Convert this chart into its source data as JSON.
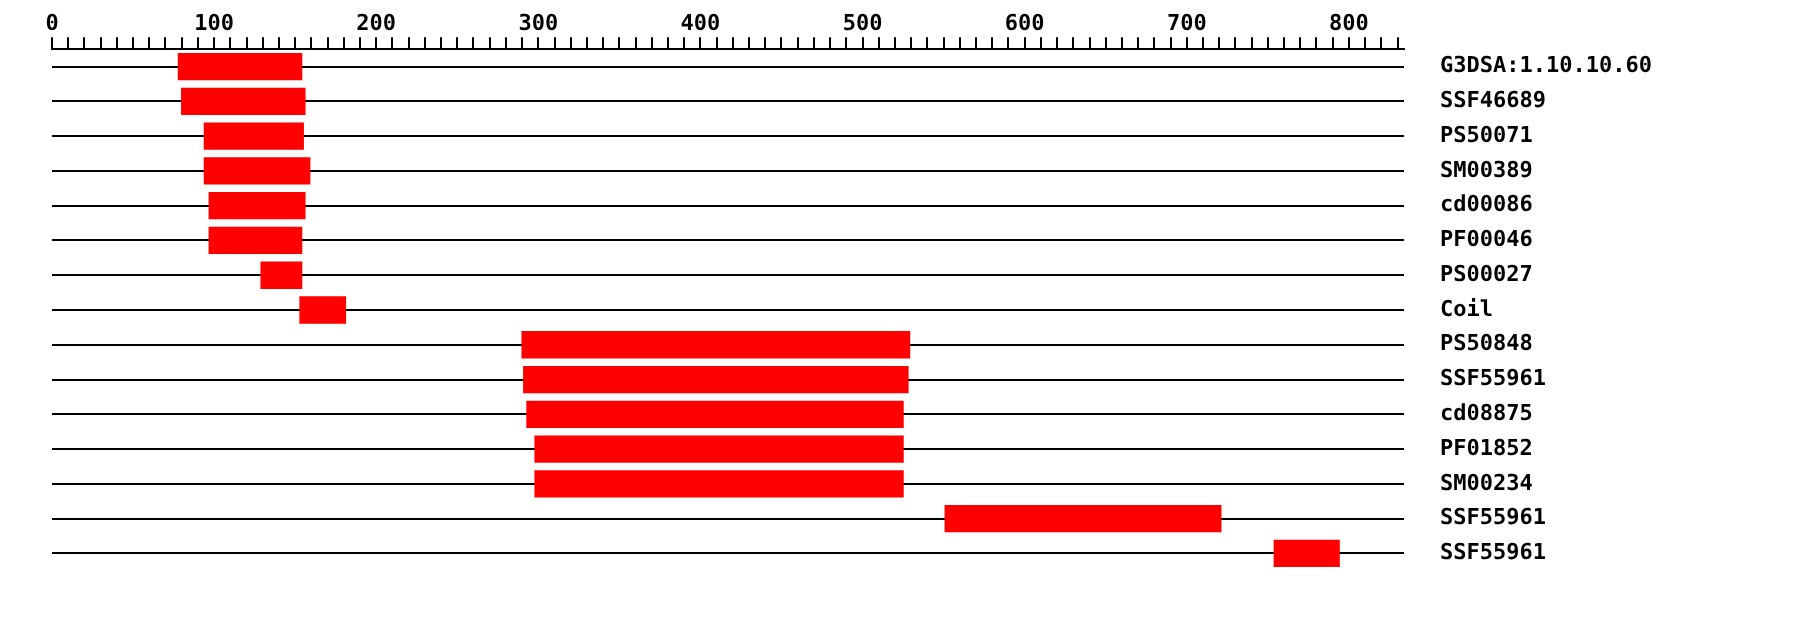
{
  "chart_data": {
    "type": "bar",
    "orientation": "horizontal",
    "categories": [
      "G3DSA:1.10.10.60",
      "SSF46689",
      "PS50071",
      "SM00389",
      "cd00086",
      "PF00046",
      "PS00027",
      "Coil",
      "PS50848",
      "SSF55961",
      "cd08875",
      "PF01852",
      "SM00234",
      "SSF55961",
      "SSF55961"
    ],
    "base": [
      78,
      80,
      94,
      94,
      97,
      97,
      129,
      153,
      290,
      291,
      293,
      298,
      298,
      551,
      754
    ],
    "values": [
      76,
      76,
      61,
      65,
      59,
      57,
      25,
      28,
      239,
      237,
      232,
      227,
      227,
      170,
      40
    ],
    "color": "#ff0000",
    "xlim": [
      0,
      834
    ],
    "xticks": [
      0,
      {
        "value": 10,
        "label": null
      },
      {
        "value": 20,
        "label": null
      },
      {
        "value": 30,
        "label": null
      },
      {
        "value": 40,
        "label": null
      },
      {
        "value": 50,
        "label": null
      },
      {
        "value": 60,
        "label": null
      },
      {
        "value": 70,
        "label": null
      },
      {
        "value": 80,
        "label": null
      },
      {
        "value": 90,
        "label": null
      },
      100,
      {
        "value": 110,
        "label": null
      },
      {
        "value": 120,
        "label": null
      },
      {
        "value": 130,
        "label": null
      },
      {
        "value": 140,
        "label": null
      },
      {
        "value": 150,
        "label": null
      },
      {
        "value": 160,
        "label": null
      },
      {
        "value": 170,
        "label": null
      },
      {
        "value": 180,
        "label": null
      },
      {
        "value": 190,
        "label": null
      },
      200,
      {
        "value": 210,
        "label": null
      },
      {
        "value": 220,
        "label": null
      },
      {
        "value": 230,
        "label": null
      },
      {
        "value": 240,
        "label": null
      },
      {
        "value": 250,
        "label": null
      },
      {
        "value": 260,
        "label": null
      },
      {
        "value": 270,
        "label": null
      },
      {
        "value": 280,
        "label": null
      },
      {
        "value": 290,
        "label": null
      },
      300,
      {
        "value": 310,
        "label": null
      },
      {
        "value": 320,
        "label": null
      },
      {
        "value": 330,
        "label": null
      },
      {
        "value": 340,
        "label": null
      },
      {
        "value": 350,
        "label": null
      },
      {
        "value": 360,
        "label": null
      },
      {
        "value": 370,
        "label": null
      },
      {
        "value": 380,
        "label": null
      },
      {
        "value": 390,
        "label": null
      },
      400,
      {
        "value": 410,
        "label": null
      },
      {
        "value": 420,
        "label": null
      },
      {
        "value": 430,
        "label": null
      },
      {
        "value": 440,
        "label": null
      },
      {
        "value": 450,
        "label": null
      },
      {
        "value": 460,
        "label": null
      },
      {
        "value": 470,
        "label": null
      },
      {
        "value": 480,
        "label": null
      },
      {
        "value": 490,
        "label": null
      },
      500,
      {
        "value": 510,
        "label": null
      },
      {
        "value": 520,
        "label": null
      },
      {
        "value": 530,
        "label": null
      },
      {
        "value": 540,
        "label": null
      },
      {
        "value": 550,
        "label": null
      },
      {
        "value": 560,
        "label": null
      },
      {
        "value": 570,
        "label": null
      },
      {
        "value": 580,
        "label": null
      },
      {
        "value": 590,
        "label": null
      },
      600,
      {
        "value": 610,
        "label": null
      },
      {
        "value": 620,
        "label": null
      },
      {
        "value": 630,
        "label": null
      },
      {
        "value": 640,
        "label": null
      },
      {
        "value": 650,
        "label": null
      },
      {
        "value": 660,
        "label": null
      },
      {
        "value": 670,
        "label": null
      },
      {
        "value": 680,
        "label": null
      },
      {
        "value": 690,
        "label": null
      },
      700,
      {
        "value": 710,
        "label": null
      },
      {
        "value": 720,
        "label": null
      },
      {
        "value": 730,
        "label": null
      },
      {
        "value": 740,
        "label": null
      },
      {
        "value": 750,
        "label": null
      },
      {
        "value": 760,
        "label": null
      },
      {
        "value": 770,
        "label": null
      },
      {
        "value": 780,
        "label": null
      },
      {
        "value": 790,
        "label": null
      },
      800,
      {
        "value": 810,
        "label": null
      },
      {
        "value": 820,
        "label": null
      },
      {
        "value": 830,
        "label": null
      }
    ],
    "grid": "y",
    "legend": false
  }
}
